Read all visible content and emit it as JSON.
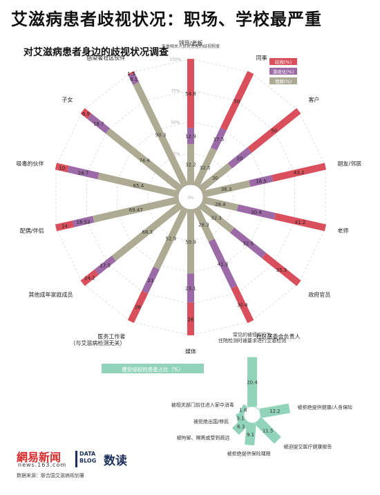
{
  "header": {
    "title": "艾滋病患者歧视状况：职场、学校最严重",
    "subtitle": "对艾滋病患者身边的歧视状况调查"
  },
  "footer": {
    "logo_text": "網易新闻",
    "logo_domain": "news.163.com",
    "data_blog_line1": "DATA",
    "data_blog_line2": "BLOG",
    "product_name": "数读",
    "source": "数据来源：联合国艾滋病规划署"
  },
  "colors": {
    "discriminate": "#d9505c",
    "indifferent": "#9c6ba7",
    "understand": "#adab93",
    "injustice": "#92d4ba",
    "grid": "#d5d5d5"
  },
  "chart_data": [
    {
      "type": "radial-stacked-bar",
      "title": "对艾滋病患者身边的歧视状况调查",
      "axis_title": "各类相关人员对患者的歧视程度",
      "rlim": [
        0,
        100
      ],
      "r_ticks": [
        "0%",
        "25%",
        "50%",
        "75%",
        "100%"
      ],
      "legend": [
        "歧视(%)",
        "漠视化(%)",
        "理解(%)"
      ],
      "legend_position": "top-right",
      "series_names": [
        "歧视",
        "漠视化",
        "理解"
      ],
      "categories": [
        {
          "name": "领导/老板",
          "values": [
            54.8,
            12.9,
            32.2
          ],
          "labels": [
            "54.8",
            "12.9",
            "32.2"
          ]
        },
        {
          "name": "同事",
          "values": [
            50,
            17.5,
            32.5
          ],
          "labels": [
            "50",
            "17.5",
            "32.5"
          ]
        },
        {
          "name": "客户",
          "values": [
            50,
            20,
            30
          ],
          "labels": [
            "50",
            "20",
            "30"
          ]
        },
        {
          "name": "朋友/邻居",
          "values": [
            43.2,
            18.5,
            38.3
          ],
          "labels": [
            "43.2",
            "18.5",
            "38.3"
          ]
        },
        {
          "name": "老师",
          "values": [
            41.2,
            30.4,
            28.4
          ],
          "labels": [
            "41.2",
            "30.4",
            "28.4"
          ]
        },
        {
          "name": "政府官员",
          "values": [
            35.3,
            32.5,
            32.3
          ],
          "labels": [
            "35.3",
            "32.5",
            "32.3"
          ]
        },
        {
          "name": "社区居委会负责人",
          "values": [
            30.4,
            41.3,
            28.3
          ],
          "labels": [
            "30.4",
            "41.3",
            "28.3"
          ]
        },
        {
          "name": "媒体",
          "values": [
            26,
            23.1,
            50.9
          ],
          "labels": [
            "26",
            "23.1",
            "50.9"
          ]
        },
        {
          "name": "医务工作者\n（与艾滋病检测无关）",
          "values": [
            26,
            21,
            52.9
          ],
          "labels": [
            "26",
            "21",
            "52.9"
          ]
        },
        {
          "name": "其他成年家庭成员",
          "values": [
            14.2,
            17.5,
            68.3
          ],
          "labels": [
            "14.2",
            "17.5",
            "68.3"
          ]
        },
        {
          "name": "配偶/伴侣",
          "values": [
            14,
            16.53,
            69.47
          ],
          "labels": [
            "14",
            "16.53",
            "69.47"
          ]
        },
        {
          "name": "吸毒的伙伴",
          "values": [
            10,
            24.7,
            65.4
          ],
          "labels": [
            "10",
            "24.7",
            "65.4"
          ]
        },
        {
          "name": "子女",
          "values": [
            6.9,
            18.7,
            74.4
          ],
          "labels": [
            "6.9",
            "18.7",
            "74.4"
          ]
        },
        {
          "name": "感染者社区伙伴",
          "values": [
            1.5,
            8.1,
            90.3
          ],
          "labels": [
            "1.5",
            "8.1",
            "90.3"
          ]
        }
      ]
    },
    {
      "type": "radial-bar",
      "title": "遭受侵权的患者占比（%）",
      "categories": [
        {
          "name": "常见的被侵权行为\n住院检测时被要求进行艾滋检测",
          "value": 20.4,
          "label": "20.4"
        },
        {
          "name": "被拒绝提供健康/人身保险",
          "value": 12.2,
          "label": "12.2"
        },
        {
          "name": "被迫提交医疗健康报告",
          "value": 11.5,
          "label": "11.5"
        },
        {
          "name": "被拒绝提供保险理赔",
          "value": 9.1,
          "label": "9.1"
        },
        {
          "name": "被拘留、隔离或受到疏远",
          "value": 6.3,
          "label": "6.3"
        },
        {
          "name": "被拒绝出国/移民",
          "value": 3.1,
          "label": "3.1"
        },
        {
          "name": "被相关部门前往进入家中消毒",
          "value": 1.8,
          "label": "1.8"
        }
      ]
    }
  ]
}
